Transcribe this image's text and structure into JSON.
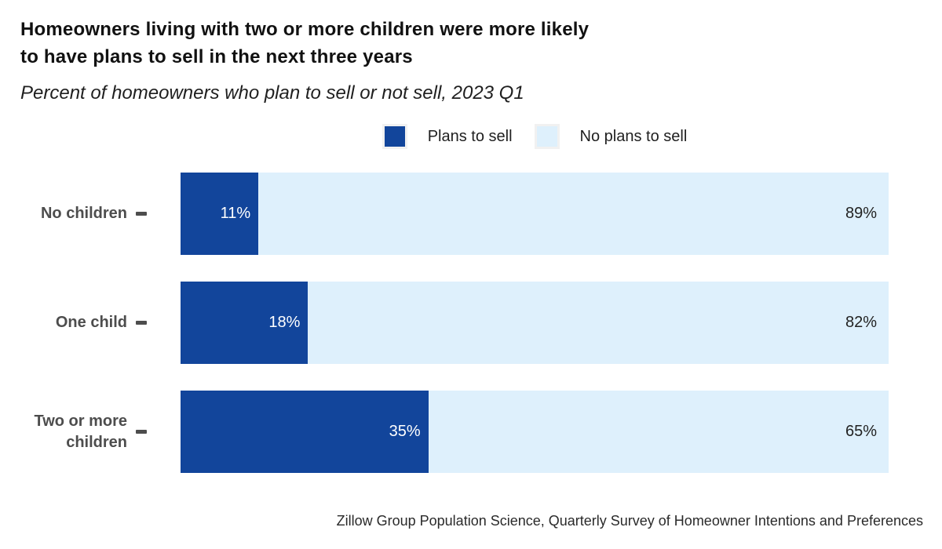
{
  "header": {
    "title_line1": "Homeowners living with two or more children were more likely",
    "title_line2": "to have plans to sell in the next three years",
    "subtitle": "Percent of homeowners who plan to sell or not sell, 2023 Q1"
  },
  "legend": {
    "sell_label": "Plans to sell",
    "nosell_label": "No plans to sell"
  },
  "colors": {
    "plans_to_sell": "#12459b",
    "no_plans_to_sell": "#def0fc",
    "category_label": "#4d4d4d",
    "value_on_dark": "#ffffff",
    "value_on_light": "#222222"
  },
  "chart_data": {
    "type": "bar",
    "orientation": "horizontal",
    "stacked": true,
    "title": "Homeowners living with two or more children were more likely to have plans to sell in the next three years",
    "subtitle": "Percent of homeowners who plan to sell or not sell, 2023 Q1",
    "xlabel": "",
    "ylabel": "",
    "xlim": [
      0,
      100
    ],
    "grid": false,
    "legend_position": "top-center",
    "categories": [
      "No children",
      "One child",
      "Two or more\nchildren"
    ],
    "series": [
      {
        "name": "Plans to sell",
        "values": [
          11,
          18,
          35
        ]
      },
      {
        "name": "No plans to sell",
        "values": [
          89,
          82,
          65
        ]
      }
    ],
    "rows": [
      {
        "label": "No children",
        "sell": 11,
        "sell_label": "11%",
        "nosell": 89,
        "nosell_label": "89%"
      },
      {
        "label": "One child",
        "sell": 18,
        "sell_label": "18%",
        "nosell": 82,
        "nosell_label": "82%"
      },
      {
        "label": "Two or more\nchildren",
        "sell": 35,
        "sell_label": "35%",
        "nosell": 65,
        "nosell_label": "65%"
      }
    ]
  },
  "footer": {
    "source": "Zillow Group Population Science, Quarterly Survey of Homeowner Intentions and Preferences"
  }
}
